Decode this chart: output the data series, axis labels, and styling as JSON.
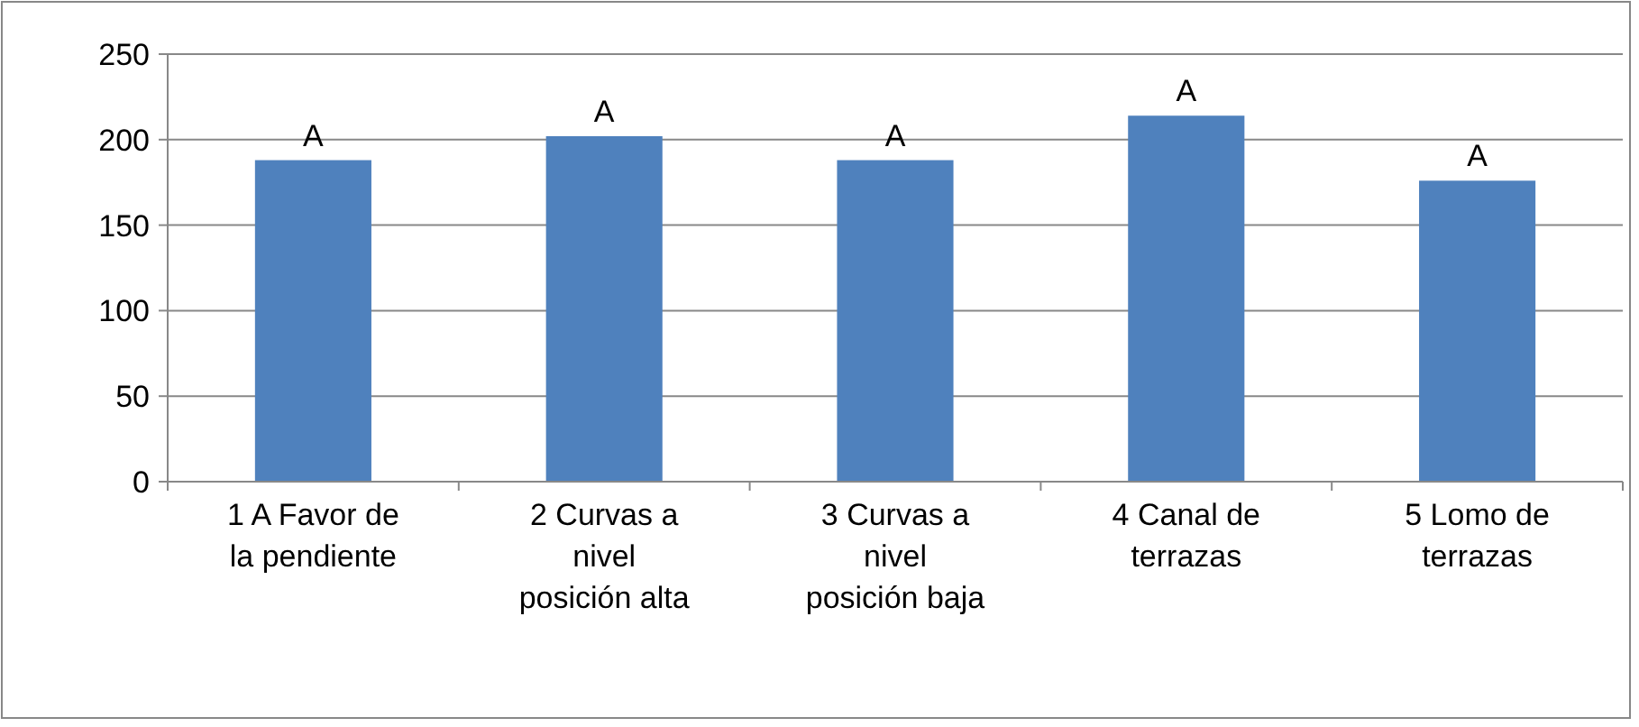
{
  "chart_data": {
    "type": "bar",
    "categories": [
      "1 A Favor de la pendiente",
      "2 Curvas a nivel posición alta",
      "3 Curvas a nivel posición baja",
      "4 Canal de terrazas",
      "5 Lomo de terrazas"
    ],
    "values": [
      188,
      202,
      188,
      214,
      176
    ],
    "color": "#4f81bd",
    "value_labels": [
      "A",
      "A",
      "A",
      "A",
      "A"
    ],
    "ylim": [
      0,
      250
    ],
    "yticks": [
      0,
      50,
      100,
      150,
      200,
      250
    ],
    "grid": "y"
  }
}
